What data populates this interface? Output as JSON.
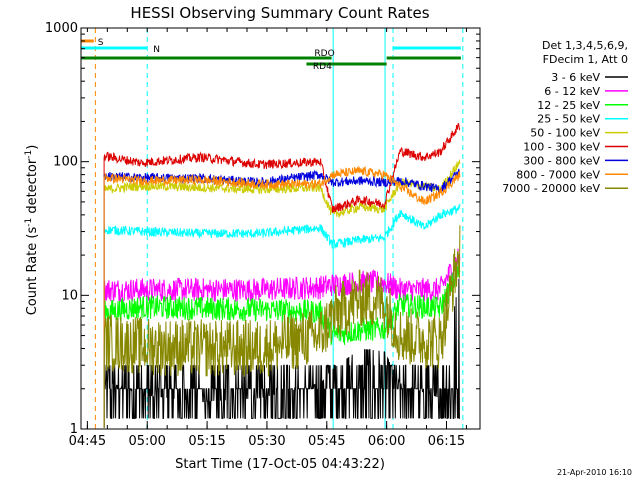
{
  "chart_data": {
    "type": "line",
    "title": "HESSI Observing Summary Count Rates",
    "xlabel": "Start Time (17-Oct-05 04:43:22)",
    "ylabel_main": "Count Rate (s",
    "ylabel_sup1": "-1",
    "ylabel_mid": " detector",
    "ylabel_sup2": "-1",
    "ylabel_end": ")",
    "yscale": "log",
    "ylim": [
      1,
      1000
    ],
    "xlim_minutes": [
      0,
      100
    ],
    "x_ticks": [
      {
        "m": 1.6,
        "label": "04:45"
      },
      {
        "m": 16.6,
        "label": "05:00"
      },
      {
        "m": 31.6,
        "label": "05:15"
      },
      {
        "m": 46.6,
        "label": "05:30"
      },
      {
        "m": 61.6,
        "label": "05:45"
      },
      {
        "m": 76.6,
        "label": "06:00"
      },
      {
        "m": 91.6,
        "label": "06:15"
      }
    ],
    "y_ticks": [
      {
        "v": 1,
        "label": "1"
      },
      {
        "v": 10,
        "label": "10"
      },
      {
        "v": 100,
        "label": "100"
      },
      {
        "v": 1000,
        "label": "1000"
      }
    ],
    "legend": {
      "header": [
        "Det 1,3,4,5,6,9,",
        "FDecim 1, Att 0"
      ],
      "entries": [
        {
          "label": "3 - 6 keV",
          "color": "#000000"
        },
        {
          "label": "6 - 12 keV",
          "color": "#ff00ff"
        },
        {
          "label": "12 - 25 keV",
          "color": "#00ff00"
        },
        {
          "label": "25 - 50 keV",
          "color": "#00ffff"
        },
        {
          "label": "50 - 100 keV",
          "color": "#cccc00"
        },
        {
          "label": "100 - 300 keV",
          "color": "#dd0000"
        },
        {
          "label": "300 - 800 keV",
          "color": "#0000dd"
        },
        {
          "label": "800 - 7000 keV",
          "color": "#ff8800"
        },
        {
          "label": "7000 - 20000 keV",
          "color": "#888800"
        }
      ]
    },
    "flags": [
      {
        "label": "S",
        "color": "#ff8800",
        "m_start": 0,
        "m_end": 3.2
      },
      {
        "label": "N",
        "color": "#00ffff",
        "m_start": 0,
        "m_end": 16.6
      },
      {
        "label": "N",
        "color": "#00ffff",
        "m_start": 78.2,
        "m_end": 95.2
      },
      {
        "label": "RDO",
        "color": "#008000",
        "m_start": 0,
        "m_end": 62.8
      },
      {
        "label": "RDO",
        "color": "#008000",
        "m_start": 76.6,
        "m_end": 95.2
      },
      {
        "label": "RD4",
        "color": "#008000",
        "m_start": 56.5,
        "m_end": 76.6
      }
    ],
    "vertical_markers": [
      {
        "m": 0,
        "color": "#00ffff",
        "style": "solid"
      },
      {
        "m": 3.6,
        "color": "#ff8800",
        "style": "dashed"
      },
      {
        "m": 16.6,
        "color": "#00ffff",
        "style": "dashed"
      },
      {
        "m": 63.2,
        "color": "#00ffff",
        "style": "solid"
      },
      {
        "m": 76.2,
        "color": "#00ffff",
        "style": "solid"
      },
      {
        "m": 78.2,
        "color": "#00ffff",
        "style": "dashed"
      },
      {
        "m": 95.7,
        "color": "#00ffff",
        "style": "dashed"
      }
    ],
    "data_start_minute": 5.8,
    "data_end_minute": 95.0,
    "series": [
      {
        "name": "3 - 6 keV",
        "color": "#000000",
        "x": [
          6,
          15,
          30,
          45,
          60,
          63,
          70,
          76,
          80,
          90,
          95
        ],
        "y": [
          2.3,
          1.8,
          1.6,
          1.7,
          2.2,
          2.8,
          4.0,
          3.8,
          2.2,
          1.7,
          15
        ]
      },
      {
        "name": "6 - 12 keV",
        "color": "#ff00ff",
        "x": [
          6,
          15,
          30,
          45,
          60,
          63,
          70,
          76,
          80,
          90,
          95
        ],
        "y": [
          11,
          11,
          11,
          11,
          11.5,
          12,
          12.5,
          12.5,
          11,
          11,
          20
        ]
      },
      {
        "name": "12 - 25 keV",
        "color": "#00ff00",
        "x": [
          6,
          15,
          30,
          45,
          60,
          63,
          70,
          76,
          80,
          90,
          95
        ],
        "y": [
          7.5,
          8.2,
          8.0,
          7.8,
          7.5,
          5.0,
          5.5,
          5.6,
          8.5,
          8.0,
          16
        ]
      },
      {
        "name": "25 - 50 keV",
        "color": "#00ffff",
        "x": [
          6,
          15,
          30,
          45,
          60,
          63,
          70,
          76,
          80,
          86,
          90,
          95
        ],
        "y": [
          31,
          30,
          29,
          29,
          32,
          24,
          26,
          27,
          42,
          32,
          40,
          45
        ]
      },
      {
        "name": "50 - 100 keV",
        "color": "#cccc00",
        "x": [
          6,
          15,
          30,
          45,
          60,
          63,
          70,
          76,
          80,
          90,
          95
        ],
        "y": [
          62,
          66,
          64,
          62,
          64,
          40,
          46,
          44,
          70,
          62,
          100
        ]
      },
      {
        "name": "100 - 300 keV",
        "color": "#dd0000",
        "x": [
          6,
          15,
          30,
          45,
          60,
          63,
          70,
          76,
          80,
          86,
          90,
          95
        ],
        "y": [
          110,
          98,
          108,
          95,
          100,
          44,
          52,
          48,
          120,
          108,
          118,
          190
        ]
      },
      {
        "name": "300 - 800 keV",
        "color": "#0000dd",
        "x": [
          6,
          15,
          30,
          45,
          60,
          63,
          70,
          76,
          80,
          90,
          95
        ],
        "y": [
          78,
          76,
          75,
          70,
          80,
          70,
          72,
          70,
          72,
          62,
          85
        ]
      },
      {
        "name": "800 - 7000 keV",
        "color": "#ff8800",
        "x": [
          6,
          15,
          30,
          45,
          60,
          63,
          70,
          76,
          80,
          86,
          90,
          95
        ],
        "y": [
          76,
          72,
          73,
          68,
          68,
          80,
          85,
          80,
          65,
          50,
          58,
          80
        ]
      },
      {
        "name": "7000 - 20000 keV",
        "color": "#888800",
        "x": [
          6,
          15,
          30,
          45,
          60,
          63,
          70,
          76,
          80,
          90,
          95
        ],
        "y": [
          4.5,
          4.2,
          4.0,
          4.0,
          5.0,
          7.0,
          9.5,
          9.0,
          5.0,
          4.5,
          22
        ]
      }
    ],
    "timestamp": "21-Apr-2010 16:10"
  }
}
